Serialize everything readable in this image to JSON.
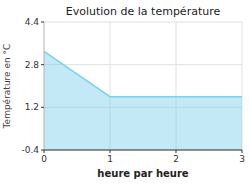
{
  "chart_data": {
    "type": "area",
    "title": "Evolution de la température",
    "x_label": "heure par heure",
    "y_label": "Température en °C",
    "x": [
      0,
      1,
      3
    ],
    "values": [
      3.3,
      1.6,
      1.6
    ],
    "color": "#7dcfea",
    "xlim": [
      0,
      3
    ],
    "ylim": [
      -0.4,
      4.4
    ],
    "xticks": [
      0,
      1,
      2,
      3
    ],
    "yticks": [
      -0.4,
      1.2,
      2.8,
      4.4
    ],
    "grid": true
  }
}
